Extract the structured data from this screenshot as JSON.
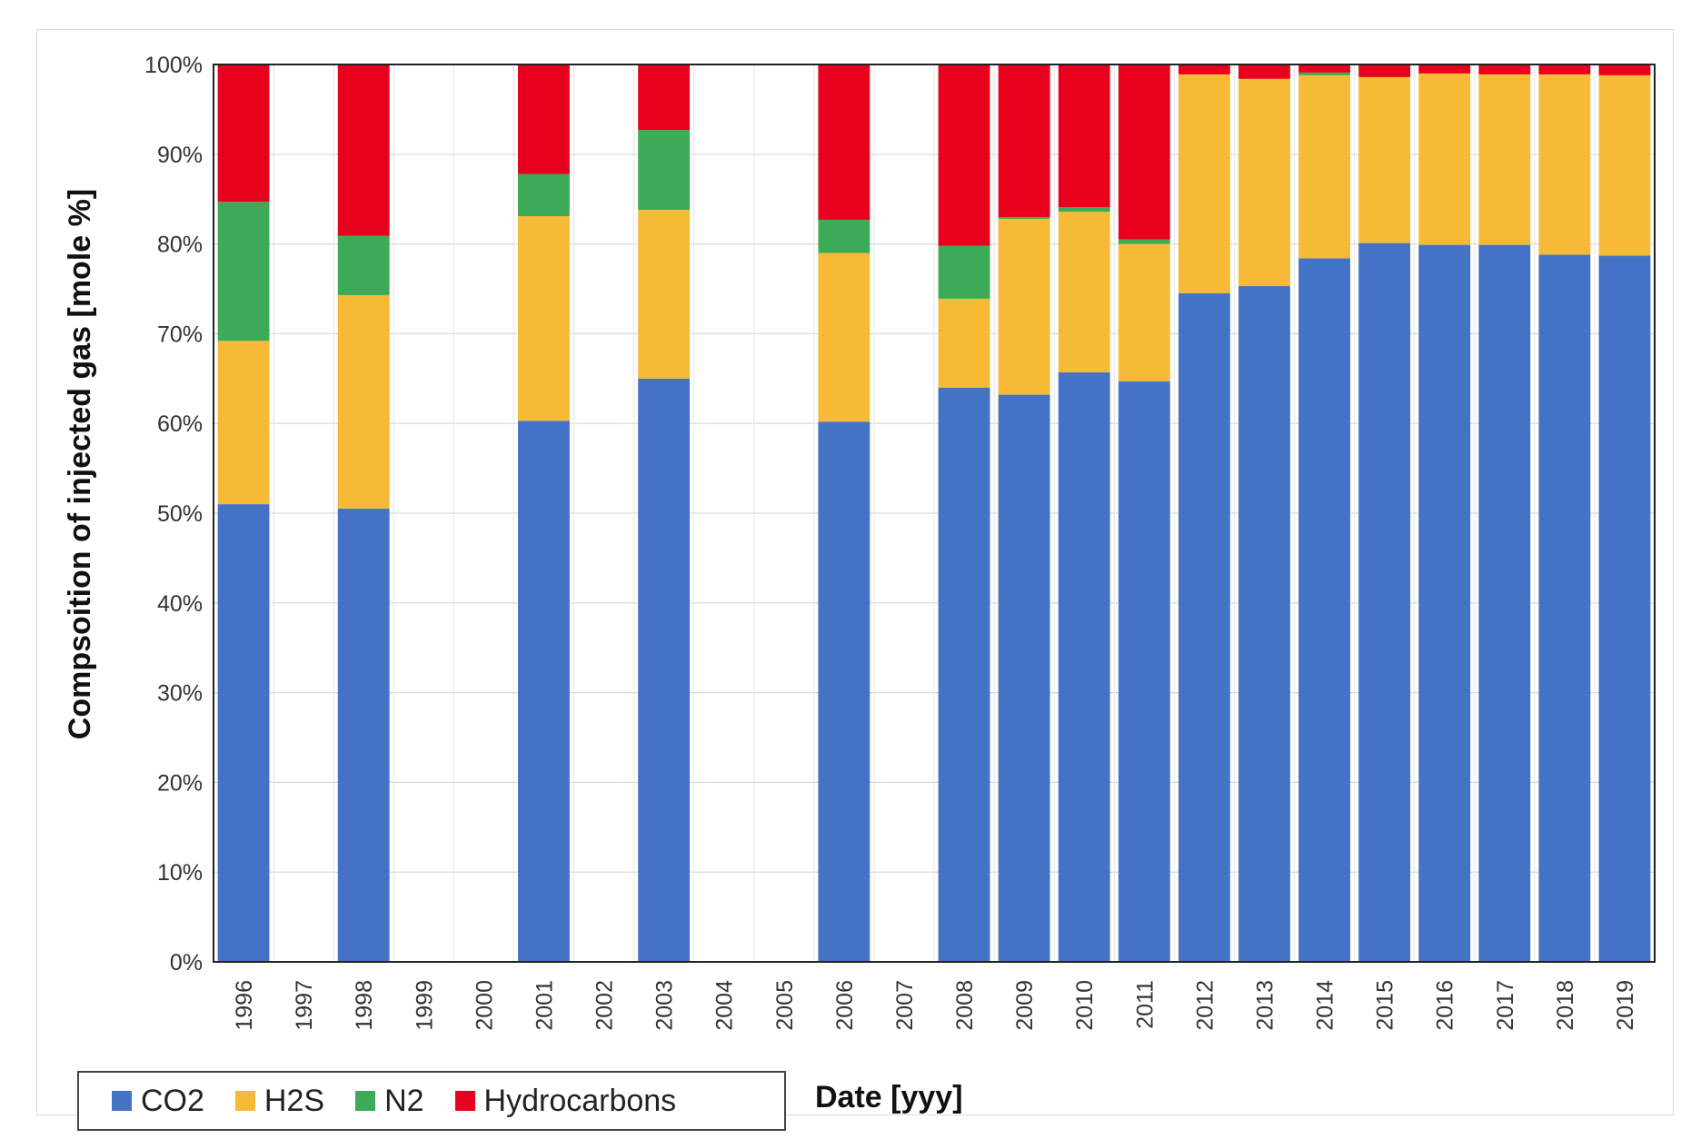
{
  "chart_data": {
    "type": "bar",
    "stacked": true,
    "categories": [
      "1996",
      "1997",
      "1998",
      "1999",
      "2000",
      "2001",
      "2002",
      "2003",
      "2004",
      "2005",
      "2006",
      "2007",
      "2008",
      "2009",
      "2010",
      "2011",
      "2012",
      "2013",
      "2014",
      "2015",
      "2016",
      "2017",
      "2018",
      "2019"
    ],
    "series": [
      {
        "name": "CO2",
        "color": "#4472C4",
        "values": [
          51,
          null,
          50.5,
          null,
          null,
          60.3,
          null,
          65,
          null,
          null,
          60.2,
          null,
          64,
          63.2,
          65.7,
          64.7,
          74.5,
          75.3,
          78.4,
          80.1,
          79.9,
          79.9,
          78.8,
          78.7
        ]
      },
      {
        "name": "H2S",
        "color": "#F7BA36",
        "values": [
          18.2,
          null,
          23.8,
          null,
          null,
          22.8,
          null,
          18.8,
          null,
          null,
          18.8,
          null,
          9.9,
          19.6,
          17.9,
          15.3,
          24.4,
          23.1,
          20.4,
          18.5,
          19.1,
          19,
          20.1,
          20.1
        ]
      },
      {
        "name": "N2",
        "color": "#3DAA57",
        "values": [
          15.5,
          null,
          6.6,
          null,
          null,
          4.7,
          null,
          8.9,
          null,
          null,
          3.7,
          null,
          5.9,
          0.2,
          0.5,
          0.5,
          0,
          0,
          0.3,
          0,
          0,
          0,
          0,
          0
        ]
      },
      {
        "name": "Hydrocarbons",
        "color": "#E8001C",
        "values": [
          15.3,
          null,
          19.1,
          null,
          null,
          12.2,
          null,
          7.3,
          null,
          null,
          17.3,
          null,
          20.2,
          17,
          15.9,
          19.5,
          1.1,
          1.6,
          0.9,
          1.4,
          1,
          1.1,
          1.1,
          1.2
        ]
      }
    ],
    "ylim": [
      0,
      100
    ],
    "yticks": [
      "0%",
      "10%",
      "20%",
      "30%",
      "40%",
      "50%",
      "60%",
      "70%",
      "80%",
      "90%",
      "100%"
    ],
    "ylabel": "Compsoition of injected gas [mole %]",
    "xlabel": "Date [yyy]",
    "grid": true,
    "legend_position": "bottom-left"
  }
}
